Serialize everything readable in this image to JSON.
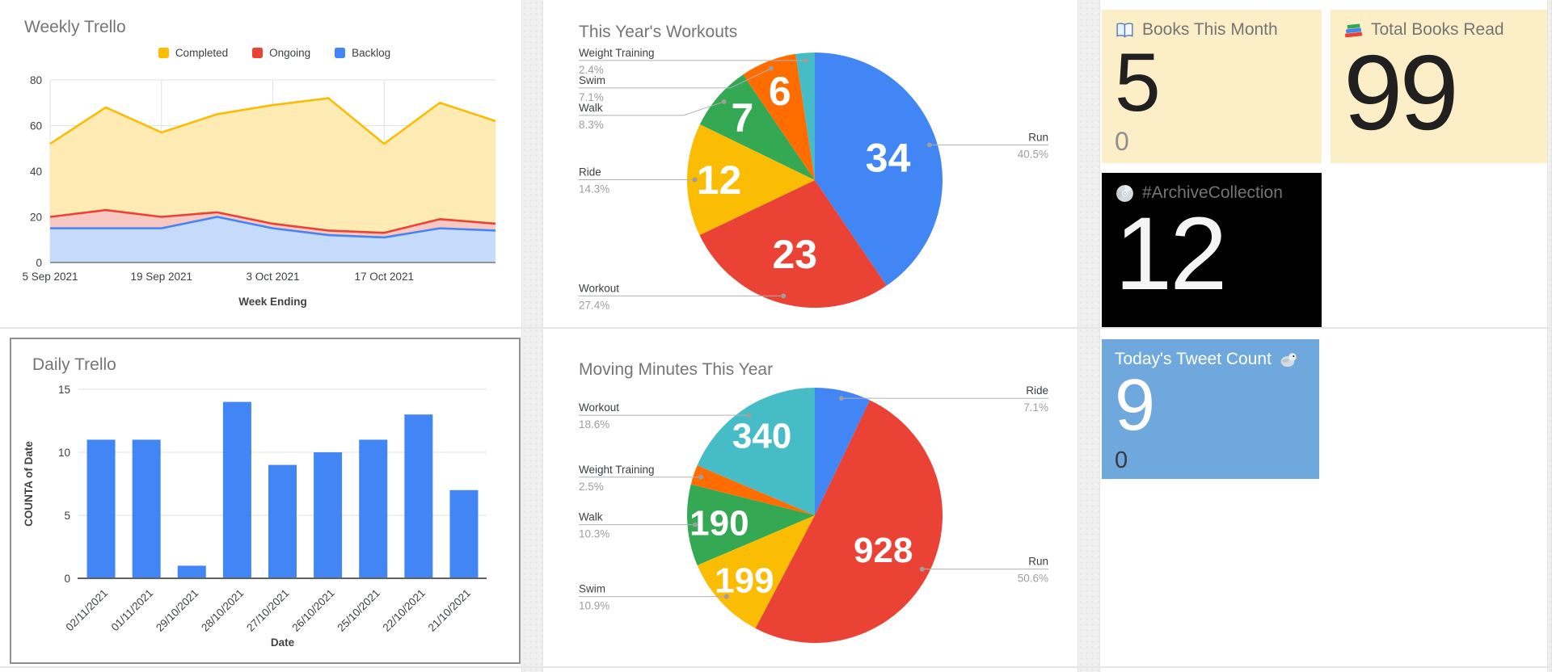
{
  "theme": {
    "title_color": "#757575",
    "axis_text": "#3c4043",
    "axis_title": "#424242",
    "grid": "#e0e0e0",
    "baseline": "#757575",
    "pie_label": "#3c4043",
    "pct_text": "#9e9e9e",
    "leader": "#b0b0b0",
    "dot": "#9e9e9e",
    "value_label": "#ffffff"
  },
  "chart_data": [
    {
      "type": "area",
      "title": "Weekly Trello",
      "n_points": 9,
      "x_tick_labels": [
        "5 Sep 2021",
        "19 Sep 2021",
        "3 Oct 2021",
        "17 Oct 2021"
      ],
      "x_tick_indices": [
        0,
        2,
        4,
        6
      ],
      "xlabel": "Week Ending",
      "ylim": [
        0,
        80
      ],
      "yticks": [
        0,
        20,
        40,
        60,
        80
      ],
      "grid": true,
      "legend_position": "top",
      "series": [
        {
          "name": "Completed",
          "color": "#FBBC04",
          "values": [
            52,
            68,
            57,
            65,
            69,
            72,
            52,
            70,
            62
          ]
        },
        {
          "name": "Ongoing",
          "color": "#EA4335",
          "values": [
            20,
            23,
            20,
            22,
            17,
            14,
            13,
            19,
            17
          ]
        },
        {
          "name": "Backlog",
          "color": "#4285F4",
          "values": [
            15,
            15,
            15,
            20,
            15,
            12,
            11,
            15,
            14
          ]
        }
      ]
    },
    {
      "type": "pie",
      "title": "This Year's Workouts",
      "slices": [
        {
          "name": "Run",
          "pct": "40.5%",
          "pct_num": 40.5,
          "value_label": "34",
          "color": "#4285F4"
        },
        {
          "name": "Workout",
          "pct": "27.4%",
          "pct_num": 27.4,
          "value_label": "23",
          "color": "#EA4335"
        },
        {
          "name": "Ride",
          "pct": "14.3%",
          "pct_num": 14.3,
          "value_label": "12",
          "color": "#FBBC04"
        },
        {
          "name": "Walk",
          "pct": "8.3%",
          "pct_num": 8.3,
          "value_label": "7",
          "color": "#34A853"
        },
        {
          "name": "Swim",
          "pct": "7.1%",
          "pct_num": 7.1,
          "value_label": "6",
          "color": "#FF6D01"
        },
        {
          "name": "Weight Training",
          "pct": "2.4%",
          "pct_num": 2.4,
          "value_label": "",
          "color": "#46BDC6"
        }
      ]
    },
    {
      "type": "bar",
      "title": "Daily Trello",
      "categories": [
        "02/11/2021",
        "01/11/2021",
        "29/10/2021",
        "28/10/2021",
        "27/10/2021",
        "26/10/2021",
        "25/10/2021",
        "22/10/2021",
        "21/10/2021"
      ],
      "values": [
        11,
        11,
        1,
        14,
        9,
        10,
        11,
        13,
        7
      ],
      "bar_color": "#4285F4",
      "ylabel": "COUNTA of Date",
      "xlabel": "Date",
      "ylim": [
        0,
        15
      ],
      "yticks": [
        0,
        5,
        10,
        15
      ]
    },
    {
      "type": "pie",
      "title": "Moving Minutes This Year",
      "slices": [
        {
          "name": "Ride",
          "pct": "7.1%",
          "pct_num": 7.1,
          "value_label": "",
          "color": "#4285F4"
        },
        {
          "name": "Run",
          "pct": "50.6%",
          "pct_num": 50.6,
          "value_label": "928",
          "color": "#EA4335"
        },
        {
          "name": "Swim",
          "pct": "10.9%",
          "pct_num": 10.9,
          "value_label": "199",
          "color": "#FBBC04"
        },
        {
          "name": "Walk",
          "pct": "10.3%",
          "pct_num": 10.3,
          "value_label": "190",
          "color": "#34A853"
        },
        {
          "name": "Weight Training",
          "pct": "2.5%",
          "pct_num": 2.5,
          "value_label": "",
          "color": "#FF6D01"
        },
        {
          "name": "Workout",
          "pct": "18.6%",
          "pct_num": 18.6,
          "value_label": "340",
          "color": "#46BDC6"
        }
      ]
    }
  ],
  "cards": [
    {
      "title": "Books This Month",
      "icon": "open-book-icon",
      "value": "5",
      "sub": "0",
      "colors": {
        "bg": "#FCEFC8",
        "title": "#757575",
        "value": "#202020",
        "sub": "#8f8f8f"
      }
    },
    {
      "title": "Total Books Read",
      "icon": "books-icon",
      "value": "99",
      "sub": "",
      "colors": {
        "bg": "#FCEFC8",
        "title": "#757575",
        "value": "#202020",
        "sub": "#8f8f8f"
      }
    },
    {
      "title": "#ArchiveCollection",
      "icon": "cd-icon",
      "value": "12",
      "sub": "",
      "colors": {
        "bg": "#000000",
        "title": "#757575",
        "value": "#f5f5f5",
        "sub": "#757575"
      }
    },
    {
      "title": "Today's Tweet Count",
      "icon": "bird-icon",
      "value": "9",
      "sub": "0",
      "colors": {
        "bg": "#6FA8DC",
        "title": "#ffffff",
        "value": "#ffffff",
        "sub": "#3a3a3a"
      }
    }
  ]
}
